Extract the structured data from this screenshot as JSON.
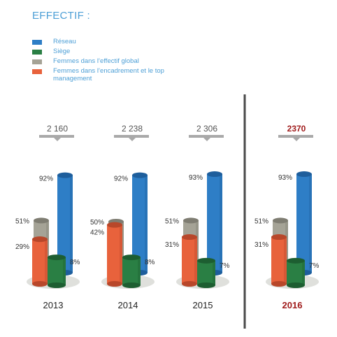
{
  "chart_data": {
    "type": "bar",
    "title": "EFFECTIF :",
    "categories": [
      "2013",
      "2014",
      "2015",
      "2016"
    ],
    "totals": [
      "2 160",
      "2 238",
      "2 306",
      "2370"
    ],
    "highlight_category": "2016",
    "ylim": [
      0,
      100
    ],
    "series": [
      {
        "name": "Réseau",
        "color": "#2e7ec6",
        "values": [
          92,
          92,
          93,
          93
        ],
        "labels": [
          "92%",
          "92%",
          "93%",
          "93%"
        ]
      },
      {
        "name": "Siège",
        "color": "#2a7f44",
        "values": [
          8,
          8,
          7,
          7
        ],
        "labels": [
          "8%",
          "8%",
          "7%",
          "7%"
        ]
      },
      {
        "name": "Femmes dans l’effectif global",
        "color": "#a5a396",
        "values": [
          51,
          50,
          51,
          51
        ],
        "labels": [
          "51%",
          "50%",
          "51%",
          "51%"
        ]
      },
      {
        "name": "Femmes dans l’encadrement et le top management",
        "color": "#e8623c",
        "values": [
          29,
          42,
          31,
          31
        ],
        "labels": [
          "29%",
          "42%",
          "31%",
          "31%"
        ]
      }
    ],
    "legend_position": "top-left",
    "grid": false
  }
}
